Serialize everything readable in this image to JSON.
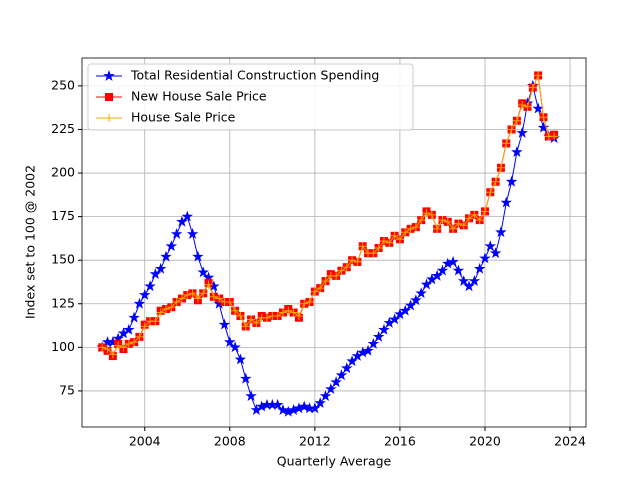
{
  "chart_data": {
    "type": "line",
    "xlabel": "Quarterly Average",
    "ylabel": "Index set to 100 @ 2002",
    "x": [
      2002,
      2002.25,
      2002.5,
      2002.75,
      2003,
      2003.25,
      2003.5,
      2003.75,
      2004,
      2004.25,
      2004.5,
      2004.75,
      2005,
      2005.25,
      2005.5,
      2005.75,
      2006,
      2006.25,
      2006.5,
      2006.75,
      2007,
      2007.25,
      2007.5,
      2007.75,
      2008,
      2008.25,
      2008.5,
      2008.75,
      2009,
      2009.25,
      2009.5,
      2009.75,
      2010,
      2010.25,
      2010.5,
      2010.75,
      2011,
      2011.25,
      2011.5,
      2011.75,
      2012,
      2012.25,
      2012.5,
      2012.75,
      2013,
      2013.25,
      2013.5,
      2013.75,
      2014,
      2014.25,
      2014.5,
      2014.75,
      2015,
      2015.25,
      2015.5,
      2015.75,
      2016,
      2016.25,
      2016.5,
      2016.75,
      2017,
      2017.25,
      2017.5,
      2017.75,
      2018,
      2018.25,
      2018.5,
      2018.75,
      2019,
      2019.25,
      2019.5,
      2019.75,
      2020,
      2020.25,
      2020.5,
      2020.75,
      2021,
      2021.25,
      2021.5,
      2021.75,
      2022,
      2022.25,
      2022.5,
      2022.75,
      2023,
      2023.25
    ],
    "series": [
      {
        "name": "Total Residential Construction Spending",
        "color": "#0000ff",
        "marker": "star",
        "values": [
          100,
          103,
          103,
          105,
          108,
          110,
          117,
          125,
          130,
          135,
          142,
          145,
          152,
          158,
          165,
          172,
          175,
          165,
          152,
          143,
          140,
          135,
          125,
          113,
          103,
          100,
          93,
          82,
          72,
          64,
          66,
          67,
          67,
          67,
          64,
          63,
          64,
          65,
          66,
          65,
          65,
          68,
          72,
          76,
          80,
          84,
          88,
          92,
          95,
          97,
          98,
          102,
          106,
          110,
          114,
          116,
          119,
          121,
          124,
          127,
          131,
          136,
          139,
          141,
          144,
          148,
          149,
          144,
          138,
          135,
          138,
          145,
          151,
          158,
          154,
          166,
          183,
          195,
          212,
          223,
          240,
          250,
          237,
          226,
          221,
          220
        ]
      },
      {
        "name": "New House Sale Price",
        "color": "#ff0000",
        "marker": "square",
        "values": [
          100,
          98,
          95,
          102,
          99,
          102,
          103,
          106,
          113,
          115,
          115,
          121,
          122,
          123,
          126,
          128,
          130,
          131,
          127,
          131,
          137,
          129,
          128,
          126,
          126,
          121,
          118,
          112,
          116,
          114,
          118,
          117,
          118,
          118,
          120,
          122,
          120,
          117,
          125,
          126,
          132,
          134,
          138,
          142,
          141,
          144,
          146,
          150,
          149,
          158,
          154,
          154,
          157,
          161,
          160,
          164,
          162,
          166,
          168,
          169,
          173,
          178,
          176,
          168,
          173,
          172,
          168,
          171,
          170,
          174,
          176,
          173,
          178,
          189,
          195,
          203,
          217,
          225,
          230,
          240,
          238,
          249,
          256,
          232,
          221,
          222
        ]
      },
      {
        "name": "House Sale Price",
        "color": "#ffa500",
        "marker": "plus",
        "values": [
          100,
          99,
          96,
          101,
          100,
          102,
          103,
          106,
          112,
          115,
          115,
          120,
          122,
          123,
          126,
          128,
          130,
          131,
          128,
          131,
          136,
          129,
          128,
          126,
          126,
          121,
          118,
          112,
          116,
          114,
          117,
          117,
          118,
          118,
          120,
          121,
          120,
          118,
          125,
          126,
          132,
          134,
          138,
          141,
          141,
          144,
          146,
          150,
          149,
          158,
          154,
          154,
          157,
          161,
          160,
          164,
          162,
          166,
          168,
          169,
          173,
          177,
          176,
          168,
          173,
          172,
          168,
          171,
          170,
          174,
          176,
          173,
          178,
          189,
          195,
          203,
          217,
          225,
          230,
          239,
          238,
          249,
          256,
          232,
          221,
          221
        ]
      }
    ],
    "xlim": [
      2001.05,
      2024.75
    ],
    "ylim": [
      54.3,
      266
    ],
    "xticks": [
      2004,
      2008,
      2012,
      2016,
      2020,
      2024
    ],
    "yticks": [
      75,
      100,
      125,
      150,
      175,
      200,
      225,
      250
    ],
    "grid": true,
    "legend": "upper left"
  }
}
